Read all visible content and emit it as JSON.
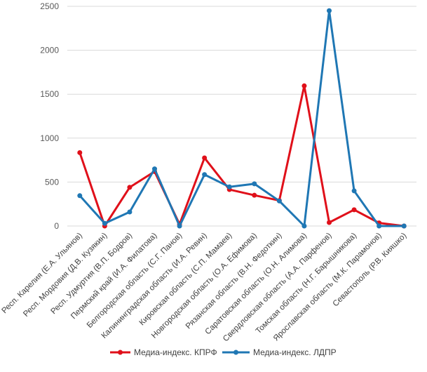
{
  "chart_data": {
    "type": "line",
    "title": "",
    "xlabel": "",
    "ylabel": "",
    "ylim": [
      0,
      2500
    ],
    "yticks": [
      0,
      500,
      1000,
      1500,
      2000,
      2500
    ],
    "grid": true,
    "legend_position": "bottom",
    "categories": [
      "Респ. Карелия (Е.А. Ульянов)",
      "Респ. Мордовия (Д.В. Кузякин)",
      "Респ. Удмуртия (В.П. Бодров)",
      "Пермский край (И.А. Филатова)",
      "Белгородская область (С.Г. Панов)",
      "Калининградская область (И.А. Ревин)",
      "Кировская область (С.П. Мамаев)",
      "Новгородская область (О.А. Ефимова)",
      "Рязанская область (В.Н. Федоткин)",
      "Саратовская область (О.Н. Алимова)",
      "Свердловская область (А.А. Парфенов)",
      "Томская область (Н.Г. Барышникова)",
      "Ярославская область (М.К. Парамонов)",
      "Севастополь (Р.В. Кияшко)"
    ],
    "series": [
      {
        "name": "Медиа-индекс. КПРФ",
        "color": "#e0101a",
        "values": [
          835,
          0,
          440,
          620,
          20,
          775,
          415,
          350,
          290,
          1595,
          40,
          185,
          35,
          0
        ]
      },
      {
        "name": "Медиа-индекс. ЛДПР",
        "color": "#1f77b4",
        "values": [
          345,
          30,
          160,
          650,
          0,
          585,
          445,
          480,
          285,
          0,
          2450,
          400,
          0,
          0
        ]
      }
    ]
  }
}
